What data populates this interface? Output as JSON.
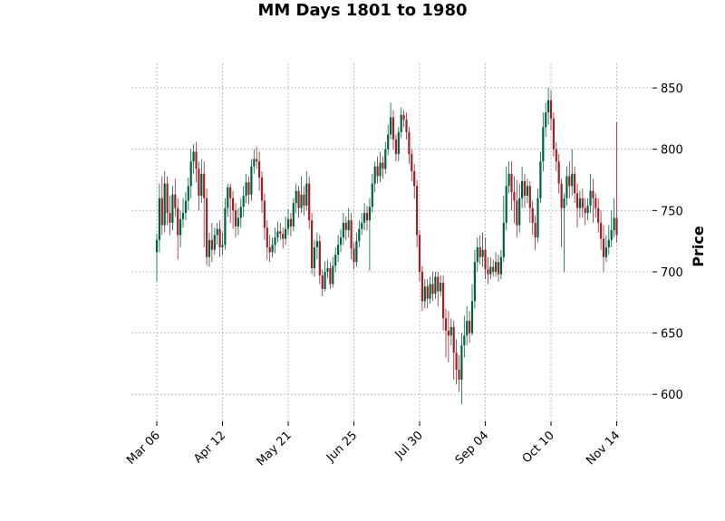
{
  "chart_data": {
    "type": "candlestick",
    "title": "MM Days 1801 to 1980",
    "ylabel": "Price",
    "ylim": [
      578,
      870
    ],
    "yticks": [
      600,
      650,
      700,
      750,
      800,
      850
    ],
    "xticks": [
      {
        "label": "Mar 06",
        "index": 0
      },
      {
        "label": "Apr 12",
        "index": 25
      },
      {
        "label": "May 21",
        "index": 50
      },
      {
        "label": "Jun 25",
        "index": 75
      },
      {
        "label": "Jul 30",
        "index": 100
      },
      {
        "label": "Sep 04",
        "index": 125
      },
      {
        "label": "Oct 10",
        "index": 150
      },
      {
        "label": "Nov 14",
        "index": 175
      }
    ],
    "grid": true,
    "up_color": "#006340",
    "down_color": "#a02128",
    "candles": [
      [
        716,
        726,
        692,
        731
      ],
      [
        726,
        760,
        716,
        772
      ],
      [
        760,
        738,
        730,
        778
      ],
      [
        738,
        772,
        732,
        782
      ],
      [
        772,
        748,
        738,
        778
      ],
      [
        748,
        740,
        730,
        762
      ],
      [
        740,
        763,
        734,
        770
      ],
      [
        763,
        752,
        745,
        776
      ],
      [
        752,
        730,
        710,
        760
      ],
      [
        730,
        743,
        720,
        750
      ],
      [
        743,
        748,
        736,
        760
      ],
      [
        748,
        758,
        742,
        765
      ],
      [
        758,
        770,
        750,
        777
      ],
      [
        770,
        790,
        760,
        800
      ],
      [
        790,
        798,
        780,
        804
      ],
      [
        798,
        784,
        773,
        806
      ],
      [
        784,
        762,
        750,
        790
      ],
      [
        762,
        780,
        756,
        792
      ],
      [
        780,
        760,
        720,
        790
      ],
      [
        760,
        712,
        705,
        768
      ],
      [
        712,
        726,
        704,
        732
      ],
      [
        726,
        718,
        708,
        740
      ],
      [
        718,
        730,
        714,
        736
      ],
      [
        730,
        735,
        722,
        740
      ],
      [
        735,
        720,
        712,
        742
      ],
      [
        720,
        722,
        714,
        732
      ],
      [
        722,
        752,
        718,
        760
      ],
      [
        752,
        769,
        745,
        772
      ],
      [
        769,
        760,
        740,
        772
      ],
      [
        760,
        750,
        735,
        766
      ],
      [
        750,
        737,
        728,
        756
      ],
      [
        737,
        744,
        730,
        752
      ],
      [
        744,
        753,
        736,
        760
      ],
      [
        753,
        762,
        745,
        770
      ],
      [
        762,
        773,
        756,
        780
      ],
      [
        773,
        763,
        755,
        778
      ],
      [
        763,
        786,
        758,
        792
      ],
      [
        786,
        792,
        780,
        800
      ],
      [
        792,
        790,
        784,
        802
      ],
      [
        790,
        777,
        766,
        798
      ],
      [
        777,
        758,
        748,
        782
      ],
      [
        758,
        736,
        726,
        764
      ],
      [
        736,
        720,
        710,
        742
      ],
      [
        720,
        716,
        708,
        730
      ],
      [
        716,
        722,
        712,
        728
      ],
      [
        722,
        728,
        715,
        736
      ],
      [
        728,
        733,
        724,
        741
      ],
      [
        733,
        731,
        726,
        740
      ],
      [
        731,
        727,
        719,
        736
      ],
      [
        727,
        735,
        722,
        745
      ],
      [
        735,
        743,
        730,
        751
      ],
      [
        743,
        737,
        729,
        748
      ],
      [
        737,
        756,
        733,
        760
      ],
      [
        756,
        766,
        748,
        772
      ],
      [
        766,
        752,
        744,
        770
      ],
      [
        752,
        763,
        748,
        778
      ],
      [
        763,
        754,
        746,
        770
      ],
      [
        754,
        772,
        750,
        782
      ],
      [
        772,
        742,
        735,
        778
      ],
      [
        742,
        703,
        698,
        748
      ],
      [
        703,
        720,
        696,
        726
      ],
      [
        720,
        725,
        710,
        732
      ],
      [
        725,
        697,
        690,
        730
      ],
      [
        697,
        686,
        680,
        702
      ],
      [
        686,
        700,
        684,
        708
      ],
      [
        700,
        703,
        695,
        710
      ],
      [
        703,
        690,
        686,
        708
      ],
      [
        690,
        705,
        687,
        712
      ],
      [
        705,
        714,
        700,
        720
      ],
      [
        714,
        722,
        708,
        730
      ],
      [
        722,
        728,
        716,
        735
      ],
      [
        728,
        740,
        722,
        748
      ],
      [
        740,
        734,
        726,
        745
      ],
      [
        734,
        742,
        728,
        752
      ],
      [
        742,
        719,
        710,
        748
      ],
      [
        719,
        708,
        702,
        724
      ],
      [
        708,
        725,
        704,
        732
      ],
      [
        725,
        735,
        720,
        742
      ],
      [
        735,
        740,
        730,
        748
      ],
      [
        740,
        748,
        734,
        756
      ],
      [
        748,
        742,
        734,
        754
      ],
      [
        742,
        753,
        701,
        760
      ],
      [
        753,
        772,
        748,
        780
      ],
      [
        772,
        786,
        765,
        790
      ],
      [
        786,
        778,
        772,
        794
      ],
      [
        778,
        789,
        773,
        798
      ],
      [
        789,
        784,
        776,
        794
      ],
      [
        784,
        800,
        780,
        806
      ],
      [
        800,
        812,
        795,
        820
      ],
      [
        812,
        826,
        808,
        838
      ],
      [
        826,
        808,
        800,
        832
      ],
      [
        808,
        796,
        790,
        812
      ],
      [
        796,
        814,
        790,
        818
      ],
      [
        814,
        828,
        809,
        834
      ],
      [
        828,
        824,
        818,
        832
      ],
      [
        824,
        814,
        808,
        830
      ],
      [
        814,
        796,
        788,
        818
      ],
      [
        796,
        782,
        774,
        800
      ],
      [
        782,
        770,
        760,
        788
      ],
      [
        770,
        730,
        720,
        775
      ],
      [
        730,
        700,
        692,
        734
      ],
      [
        700,
        676,
        668,
        705
      ],
      [
        676,
        688,
        670,
        694
      ],
      [
        688,
        678,
        670,
        694
      ],
      [
        678,
        690,
        674,
        696
      ],
      [
        690,
        682,
        676,
        700
      ],
      [
        682,
        696,
        678,
        700
      ],
      [
        696,
        684,
        672,
        700
      ],
      [
        684,
        691,
        680,
        697
      ],
      [
        691,
        662,
        652,
        697
      ],
      [
        662,
        652,
        630,
        670
      ],
      [
        652,
        648,
        626,
        668
      ],
      [
        648,
        655,
        640,
        662
      ],
      [
        655,
        634,
        612,
        660
      ],
      [
        634,
        620,
        608,
        645
      ],
      [
        620,
        612,
        602,
        632
      ],
      [
        612,
        640,
        592,
        650
      ],
      [
        640,
        648,
        630,
        664
      ],
      [
        648,
        660,
        640,
        672
      ],
      [
        660,
        650,
        642,
        668
      ],
      [
        650,
        676,
        648,
        690
      ],
      [
        676,
        708,
        670,
        718
      ],
      [
        708,
        720,
        700,
        728
      ],
      [
        720,
        712,
        706,
        730
      ],
      [
        712,
        718,
        704,
        732
      ],
      [
        718,
        702,
        694,
        728
      ],
      [
        702,
        698,
        690,
        712
      ],
      [
        698,
        704,
        694,
        712
      ],
      [
        704,
        700,
        696,
        710
      ],
      [
        700,
        708,
        696,
        716
      ],
      [
        708,
        698,
        692,
        714
      ],
      [
        698,
        712,
        694,
        718
      ],
      [
        712,
        740,
        708,
        762
      ],
      [
        740,
        770,
        734,
        786
      ],
      [
        770,
        780,
        764,
        790
      ],
      [
        780,
        765,
        750,
        790
      ],
      [
        765,
        758,
        740,
        778
      ],
      [
        758,
        738,
        728,
        775
      ],
      [
        738,
        760,
        732,
        772
      ],
      [
        760,
        774,
        752,
        786
      ],
      [
        774,
        762,
        752,
        780
      ],
      [
        762,
        770,
        756,
        776
      ],
      [
        770,
        752,
        740,
        774
      ],
      [
        752,
        740,
        730,
        758
      ],
      [
        740,
        728,
        718,
        746
      ],
      [
        728,
        760,
        724,
        768
      ],
      [
        760,
        790,
        756,
        798
      ],
      [
        790,
        818,
        782,
        830
      ],
      [
        818,
        830,
        810,
        838
      ],
      [
        830,
        840,
        820,
        850
      ],
      [
        840,
        825,
        815,
        848
      ],
      [
        825,
        800,
        794,
        830
      ],
      [
        800,
        790,
        782,
        806
      ],
      [
        790,
        772,
        764,
        796
      ],
      [
        772,
        752,
        720,
        776
      ],
      [
        752,
        760,
        700,
        764
      ],
      [
        760,
        778,
        754,
        786
      ],
      [
        778,
        770,
        760,
        790
      ],
      [
        770,
        780,
        762,
        800
      ],
      [
        780,
        764,
        756,
        786
      ],
      [
        764,
        752,
        736,
        772
      ],
      [
        752,
        760,
        744,
        766
      ],
      [
        760,
        752,
        744,
        768
      ],
      [
        752,
        748,
        738,
        760
      ],
      [
        748,
        754,
        742,
        760
      ],
      [
        754,
        766,
        748,
        780
      ],
      [
        766,
        760,
        740,
        776
      ],
      [
        760,
        752,
        744,
        764
      ],
      [
        752,
        740,
        732,
        760
      ],
      [
        740,
        727,
        718,
        750
      ],
      [
        727,
        712,
        700,
        738
      ],
      [
        712,
        720,
        708,
        730
      ],
      [
        720,
        726,
        714,
        738
      ],
      [
        726,
        734,
        720,
        750
      ],
      [
        734,
        744,
        728,
        760
      ],
      [
        744,
        730,
        724,
        822
      ]
    ]
  }
}
